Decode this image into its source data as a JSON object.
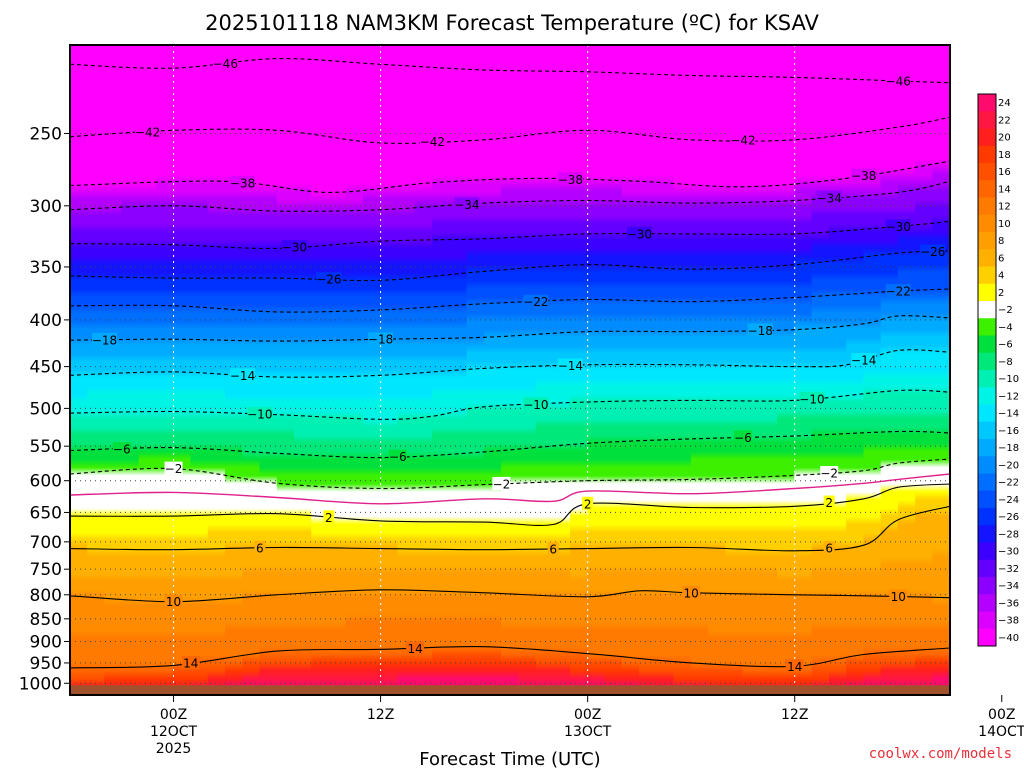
{
  "chart_data": {
    "type": "heatmap",
    "title": "2025101118 NAM3KM Forecast Temperature (ºC) for KSAV",
    "xlabel": "Forecast Time (UTC)",
    "credit": "coolwx.com/models",
    "x_range_hours": [
      -6,
      45
    ],
    "x_ticks": [
      {
        "hour": 0,
        "lines": [
          "00Z",
          "12OCT",
          "2025"
        ]
      },
      {
        "hour": 12,
        "lines": [
          "12Z"
        ]
      },
      {
        "hour": 24,
        "lines": [
          "00Z",
          "13OCT"
        ]
      },
      {
        "hour": 36,
        "lines": [
          "12Z"
        ]
      },
      {
        "hour": 48,
        "lines": [
          "00Z",
          "14OCT"
        ]
      }
    ],
    "y_range_hpa": [
      1030,
      200
    ],
    "y_ticks": [
      250,
      300,
      350,
      400,
      450,
      500,
      550,
      600,
      650,
      700,
      750,
      800,
      850,
      900,
      950,
      1000
    ],
    "surface_pressure_hpa": 1005,
    "colorbar": {
      "levels": [
        24,
        22,
        20,
        18,
        16,
        14,
        12,
        10,
        8,
        6,
        4,
        2,
        -2,
        -4,
        -6,
        -8,
        -10,
        -12,
        -14,
        -16,
        -18,
        -20,
        -22,
        -24,
        -26,
        -28,
        -30,
        -32,
        -34,
        -36,
        -38,
        -40
      ],
      "labels": [
        "24",
        "22",
        "20",
        "18",
        "16",
        "14",
        "12",
        "10",
        "8",
        "6",
        "4",
        "2",
        "−2",
        "−4",
        "−6",
        "−8",
        "−10",
        "−12",
        "−14",
        "−16",
        "−18",
        "−20",
        "−22",
        "−24",
        "−26",
        "−28",
        "−30",
        "−32",
        "−34",
        "−36",
        "−38",
        "−40"
      ],
      "colors": [
        "#ff0b6d",
        "#ff1744",
        "#ff1f1f",
        "#ff3a00",
        "#ff5000",
        "#ff6600",
        "#ff7a00",
        "#ff8c00",
        "#ff9e00",
        "#ffb000",
        "#ffd000",
        "#ffff00",
        "#ffffff",
        "#3cf000",
        "#00e03c",
        "#00e87a",
        "#00f0b4",
        "#00f4e6",
        "#00e6ff",
        "#00c8ff",
        "#00aaff",
        "#008cff",
        "#006eff",
        "#0050ff",
        "#0032ff",
        "#1414ff",
        "#3c00ff",
        "#6400ff",
        "#8c00ff",
        "#b400ff",
        "#dc00ff",
        "#ff00ff"
      ]
    },
    "contour_levels": [
      {
        "temp": -46,
        "label": "−46",
        "style": "dashed",
        "points": [
          [
            -6,
            210
          ],
          [
            0,
            212
          ],
          [
            6,
            207
          ],
          [
            12,
            210
          ],
          [
            18,
            213
          ],
          [
            24,
            214
          ],
          [
            30,
            216
          ],
          [
            36,
            217
          ],
          [
            42,
            219
          ],
          [
            45,
            220
          ]
        ],
        "label_hours": [
          3,
          42
        ]
      },
      {
        "temp": -42,
        "label": "−42",
        "style": "dashed",
        "points": [
          [
            -6,
            252
          ],
          [
            0,
            248
          ],
          [
            6,
            248
          ],
          [
            12,
            256
          ],
          [
            18,
            254
          ],
          [
            24,
            248
          ],
          [
            30,
            254
          ],
          [
            36,
            254
          ],
          [
            42,
            246
          ],
          [
            45,
            240
          ]
        ],
        "label_hours": [
          -1.5,
          15,
          33
        ]
      },
      {
        "temp": -38,
        "label": "−38",
        "style": "dashed",
        "points": [
          [
            -6,
            285
          ],
          [
            3,
            282
          ],
          [
            9,
            290
          ],
          [
            15,
            283
          ],
          [
            21,
            280
          ],
          [
            27,
            282
          ],
          [
            33,
            286
          ],
          [
            39,
            280
          ],
          [
            45,
            268
          ]
        ],
        "label_hours": [
          4,
          23,
          40
        ]
      },
      {
        "temp": -34,
        "label": "−34",
        "style": "dashed",
        "points": [
          [
            -6,
            303
          ],
          [
            0,
            300
          ],
          [
            6,
            304
          ],
          [
            12,
            303
          ],
          [
            18,
            298
          ],
          [
            24,
            296
          ],
          [
            30,
            298
          ],
          [
            36,
            296
          ],
          [
            42,
            290
          ],
          [
            45,
            282
          ]
        ],
        "label_hours": [
          17,
          38
        ]
      },
      {
        "temp": -30,
        "label": "−30",
        "style": "dashed",
        "points": [
          [
            -6,
            330
          ],
          [
            0,
            331
          ],
          [
            6,
            334
          ],
          [
            12,
            328
          ],
          [
            18,
            326
          ],
          [
            24,
            322
          ],
          [
            30,
            322
          ],
          [
            36,
            322
          ],
          [
            42,
            316
          ],
          [
            45,
            312
          ]
        ],
        "label_hours": [
          7,
          27,
          42
        ]
      },
      {
        "temp": -26,
        "label": "−26",
        "style": "dashed",
        "points": [
          [
            -6,
            358
          ],
          [
            0,
            360
          ],
          [
            6,
            360
          ],
          [
            12,
            362
          ],
          [
            18,
            354
          ],
          [
            24,
            348
          ],
          [
            30,
            352
          ],
          [
            36,
            348
          ],
          [
            42,
            338
          ],
          [
            45,
            336
          ]
        ],
        "label_hours": [
          9,
          44
        ]
      },
      {
        "temp": -22,
        "label": "−22",
        "style": "dashed",
        "points": [
          [
            -6,
            386
          ],
          [
            0,
            386
          ],
          [
            6,
            392
          ],
          [
            12,
            390
          ],
          [
            18,
            384
          ],
          [
            24,
            380
          ],
          [
            30,
            382
          ],
          [
            36,
            378
          ],
          [
            42,
            372
          ],
          [
            45,
            370
          ]
        ],
        "label_hours": [
          21,
          42
        ]
      },
      {
        "temp": -18,
        "label": "−18",
        "style": "dashed",
        "points": [
          [
            -6,
            421
          ],
          [
            0,
            420
          ],
          [
            6,
            422
          ],
          [
            12,
            420
          ],
          [
            18,
            418
          ],
          [
            24,
            412
          ],
          [
            30,
            412
          ],
          [
            36,
            410
          ],
          [
            40,
            404
          ],
          [
            42,
            396
          ],
          [
            45,
            398
          ]
        ],
        "label_hours": [
          -4,
          12,
          34
        ]
      },
      {
        "temp": -14,
        "label": "−14",
        "style": "dashed",
        "points": [
          [
            -6,
            460
          ],
          [
            0,
            456
          ],
          [
            6,
            462
          ],
          [
            12,
            460
          ],
          [
            18,
            452
          ],
          [
            24,
            448
          ],
          [
            30,
            448
          ],
          [
            36,
            450
          ],
          [
            39,
            448
          ],
          [
            42,
            432
          ],
          [
            45,
            434
          ]
        ],
        "label_hours": [
          4,
          23,
          40
        ]
      },
      {
        "temp": -10,
        "label": "−10",
        "style": "dashed",
        "points": [
          [
            -6,
            506
          ],
          [
            0,
            504
          ],
          [
            6,
            508
          ],
          [
            12,
            514
          ],
          [
            15,
            510
          ],
          [
            18,
            498
          ],
          [
            24,
            492
          ],
          [
            30,
            490
          ],
          [
            36,
            490
          ],
          [
            42,
            478
          ],
          [
            45,
            480
          ]
        ],
        "label_hours": [
          5,
          21,
          37
        ]
      },
      {
        "temp": -6,
        "label": "−6",
        "style": "dashed",
        "points": [
          [
            -6,
            556
          ],
          [
            0,
            552
          ],
          [
            6,
            560
          ],
          [
            12,
            566
          ],
          [
            18,
            558
          ],
          [
            24,
            546
          ],
          [
            30,
            540
          ],
          [
            36,
            536
          ],
          [
            42,
            530
          ],
          [
            45,
            532
          ]
        ],
        "label_hours": [
          -3,
          13,
          33
        ]
      },
      {
        "temp": -2,
        "label": "−2",
        "style": "dashed",
        "points": [
          [
            -6,
            590
          ],
          [
            0,
            582
          ],
          [
            6,
            604
          ],
          [
            12,
            612
          ],
          [
            18,
            606
          ],
          [
            24,
            600
          ],
          [
            30,
            598
          ],
          [
            36,
            592
          ],
          [
            40,
            585
          ],
          [
            42,
            574
          ],
          [
            45,
            568
          ]
        ],
        "label_hours": [
          0,
          19,
          38
        ]
      },
      {
        "temp": 0,
        "label": "",
        "style": "magenta",
        "points": [
          [
            -6,
            622
          ],
          [
            0,
            618
          ],
          [
            6,
            626
          ],
          [
            12,
            636
          ],
          [
            18,
            628
          ],
          [
            22,
            632
          ],
          [
            24,
            616
          ],
          [
            30,
            620
          ],
          [
            36,
            612
          ],
          [
            40,
            604
          ],
          [
            42,
            598
          ],
          [
            45,
            590
          ]
        ],
        "label_hours": []
      },
      {
        "temp": 2,
        "label": "2",
        "style": "solid",
        "points": [
          [
            -6,
            656
          ],
          [
            0,
            656
          ],
          [
            6,
            652
          ],
          [
            12,
            664
          ],
          [
            18,
            666
          ],
          [
            22,
            670
          ],
          [
            24,
            636
          ],
          [
            30,
            642
          ],
          [
            36,
            640
          ],
          [
            40,
            628
          ],
          [
            42,
            610
          ],
          [
            45,
            605
          ]
        ],
        "label_hours": [
          9,
          24,
          38
        ]
      },
      {
        "temp": 6,
        "label": "6",
        "style": "solid",
        "points": [
          [
            -6,
            712
          ],
          [
            0,
            714
          ],
          [
            6,
            710
          ],
          [
            12,
            712
          ],
          [
            18,
            714
          ],
          [
            24,
            712
          ],
          [
            30,
            710
          ],
          [
            36,
            716
          ],
          [
            40,
            706
          ],
          [
            42,
            662
          ],
          [
            45,
            640
          ]
        ],
        "label_hours": [
          5,
          22,
          38
        ]
      },
      {
        "temp": 10,
        "label": "10",
        "style": "solid",
        "points": [
          [
            -6,
            802
          ],
          [
            0,
            814
          ],
          [
            6,
            800
          ],
          [
            12,
            790
          ],
          [
            18,
            796
          ],
          [
            24,
            804
          ],
          [
            27,
            792
          ],
          [
            30,
            796
          ],
          [
            36,
            800
          ],
          [
            40,
            802
          ],
          [
            45,
            806
          ]
        ],
        "label_hours": [
          0,
          30,
          42
        ]
      },
      {
        "temp": 14,
        "label": "14",
        "style": "solid",
        "points": [
          [
            -6,
            962
          ],
          [
            0,
            956
          ],
          [
            6,
            922
          ],
          [
            12,
            918
          ],
          [
            18,
            912
          ],
          [
            24,
            928
          ],
          [
            30,
            950
          ],
          [
            36,
            958
          ],
          [
            40,
            930
          ],
          [
            45,
            915
          ]
        ],
        "label_hours": [
          1,
          14,
          36
        ]
      }
    ]
  }
}
